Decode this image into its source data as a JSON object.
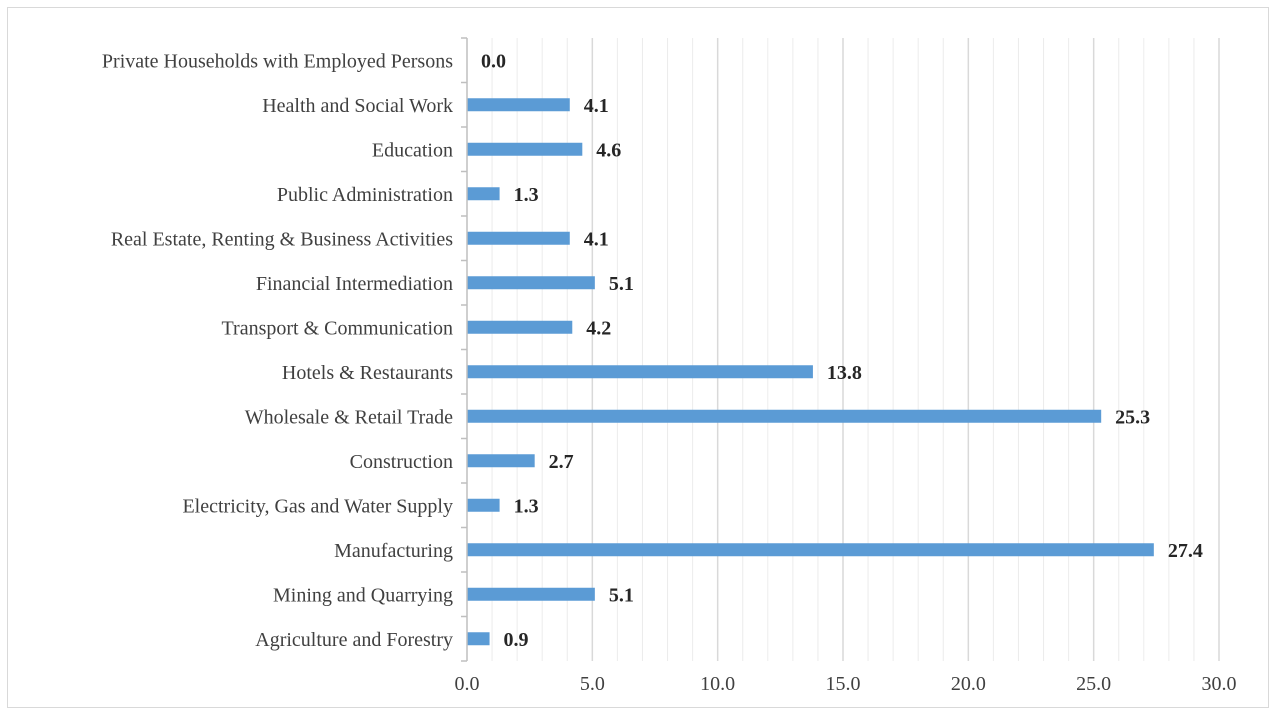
{
  "chart_data": {
    "type": "bar",
    "orientation": "horizontal",
    "categories": [
      "Agriculture and Forestry",
      "Mining and Quarrying",
      "Manufacturing",
      "Electricity, Gas and Water Supply",
      "Construction",
      "Wholesale & Retail Trade",
      "Hotels & Restaurants",
      "Transport & Communication",
      "Financial Intermediation",
      "Real Estate, Renting & Business Activities",
      "Public Administration",
      "Education",
      "Health and Social Work",
      "Private Households with Employed Persons"
    ],
    "values": [
      0.9,
      5.1,
      27.4,
      1.3,
      2.7,
      25.3,
      13.8,
      4.2,
      5.1,
      4.1,
      1.3,
      4.6,
      4.1,
      0.0
    ],
    "data_labels": [
      "0.9",
      "5.1",
      "27.4",
      "1.3",
      "2.7",
      "25.3",
      "13.8",
      "4.2",
      "5.1",
      "4.1",
      "1.3",
      "4.6",
      "4.1",
      "0.0"
    ],
    "title": "",
    "xlabel": "",
    "ylabel": "",
    "xlim": [
      0,
      30
    ],
    "xticks": [
      0,
      5,
      10,
      15,
      20,
      25,
      30
    ],
    "xtick_labels": [
      "0.0",
      "5.0",
      "10.0",
      "15.0",
      "20.0",
      "25.0",
      "30.0"
    ],
    "minor_gridline_step": 1,
    "grid": true,
    "legend": false,
    "colors": {
      "bar": "#5b9bd5",
      "major_grid": "#d9d9d9",
      "minor_grid": "#ececec",
      "axis": "#bfbfbf",
      "text": "#404040",
      "data_label": "#262626",
      "frame": "#d9d9d9"
    }
  }
}
